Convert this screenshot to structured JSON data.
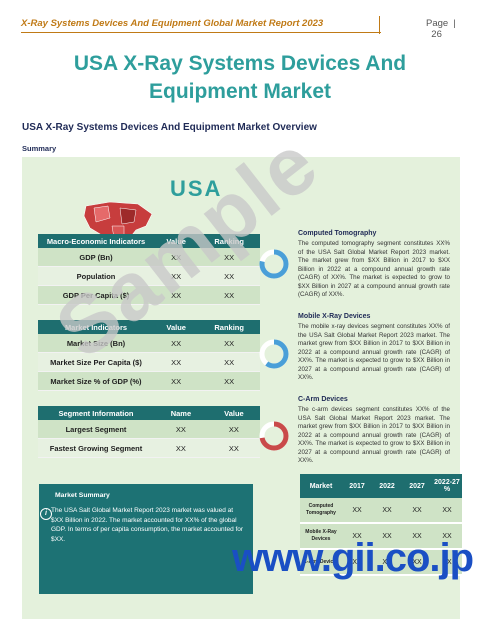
{
  "header": {
    "title": "X-Ray Systems Devices And Equipment Global Market Report 2023",
    "page_label": "Page",
    "page_number": "26"
  },
  "title": "USA X-Ray Systems Devices And Equipment Market",
  "section_title": "USA X-Ray Systems Devices And Equipment Market Overview",
  "summary_label": "Summary",
  "country_label": "USA",
  "macro_table": {
    "headers": [
      "Macro-Economic Indicators",
      "Value",
      "Ranking"
    ],
    "rows": [
      [
        "GDP (Bn)",
        "XX",
        "XX"
      ],
      [
        "Population",
        "XX",
        "XX"
      ],
      [
        "GDP Per Capita ($)",
        "XX",
        "XX"
      ]
    ]
  },
  "market_table": {
    "headers": [
      "Market Indicators",
      "Value",
      "Ranking"
    ],
    "rows": [
      [
        "Market Size (Bn)",
        "XX",
        "XX"
      ],
      [
        "Market Size Per Capita ($)",
        "XX",
        "XX"
      ],
      [
        "Market Size % of GDP (%)",
        "XX",
        "XX"
      ]
    ]
  },
  "segment_table": {
    "headers": [
      "Segment Information",
      "Name",
      "Value"
    ],
    "rows": [
      [
        "Largest Segment",
        "XX",
        "XX"
      ],
      [
        "Fastest Growing Segment",
        "XX",
        "XX"
      ]
    ]
  },
  "categories": [
    {
      "title": "Computed Tomography",
      "text": "The computed tomography segment constitutes XX% of the USA Salt Global Market Report 2023 market. The market grew from $XX Billion in 2017 to $XX Billion in 2022 at a compound annual growth rate (CAGR) of XX%. The market is expected to grow to $XX Billion in 2027 at a compound annual growth rate (CAGR) of XX%.",
      "ring_color": "#4a9fd8",
      "ring_share": 0.78
    },
    {
      "title": "Mobile X-Ray Devices",
      "text": "The mobile x-ray devices segment constitutes XX% of the USA Salt Global Market Report 2023 market. The market grew from $XX Billion in 2017 to $XX Billion in 2022 at a compound annual growth rate (CAGR) of XX%. The market is expected to grow to $XX Billion in 2027 at a compound annual growth rate (CAGR) of XX%.",
      "ring_color": "#4a9fd8",
      "ring_share": 0.6
    },
    {
      "title": "C-Arm Devices",
      "text": "The c-arm devices segment constitutes XX% of the USA Salt Global Market Report 2023 market. The market grew from $XX Billion in 2017 to $XX Billion in 2022 at a compound annual growth rate (CAGR) of XX%. The market is expected to grow to $XX Billion in 2027 at a compound annual growth rate (CAGR) of XX%.",
      "ring_color": "#c94a4a",
      "ring_share": 0.72
    }
  ],
  "market_summary": {
    "title": "Market Summary",
    "text": "The USA Salt Global Market Report 2023 market was valued at $XX Billion in 2022. The market accounted for XX% of the global GDP. In terms of per capita consumption, the market accounted for $XX."
  },
  "market_growth_table": {
    "headers": [
      "Market",
      "2017",
      "2022",
      "2027",
      "2022-27 %"
    ],
    "rows": [
      [
        "Computed Tomography",
        "XX",
        "XX",
        "XX",
        "XX"
      ],
      [
        "Mobile X-Ray Devices",
        "XX",
        "XX",
        "XX",
        "XX"
      ],
      [
        "C-Arm Devices",
        "XX",
        "XX",
        "XX",
        "XX"
      ]
    ]
  },
  "watermark": "Sample",
  "brand": "www.gii.co.jp",
  "colors": {
    "accent": "#2e9e9c",
    "header_gold": "#c07a16",
    "table_header": "#1e6e6f",
    "panel": "#e4f1dc",
    "brand_blue": "#1a4fc4"
  }
}
